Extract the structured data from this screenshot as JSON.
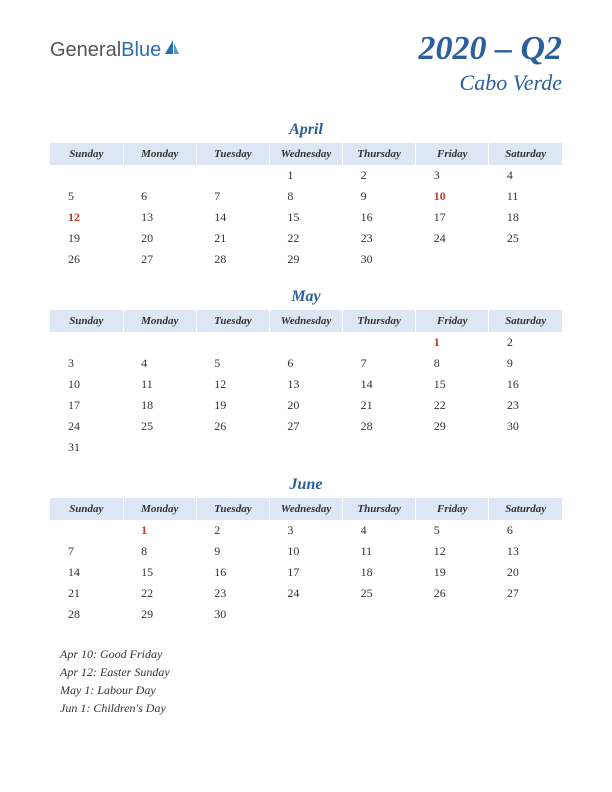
{
  "logo": {
    "part1": "General",
    "part2": "Blue"
  },
  "title": {
    "main": "2020 – Q2",
    "sub": "Cabo Verde"
  },
  "dayHeaders": [
    "Sunday",
    "Monday",
    "Tuesday",
    "Wednesday",
    "Thursday",
    "Friday",
    "Saturday"
  ],
  "colors": {
    "headerBg": "#dce6f5",
    "accent": "#2a5f9e",
    "holiday": "#c0392b",
    "text": "#333333",
    "background": "#ffffff"
  },
  "months": [
    {
      "name": "April",
      "weeks": [
        [
          null,
          null,
          null,
          1,
          2,
          3,
          4
        ],
        [
          5,
          6,
          7,
          8,
          9,
          10,
          11
        ],
        [
          12,
          13,
          14,
          15,
          16,
          17,
          18
        ],
        [
          19,
          20,
          21,
          22,
          23,
          24,
          25
        ],
        [
          26,
          27,
          28,
          29,
          30,
          null,
          null
        ]
      ],
      "holidays": [
        10,
        12
      ]
    },
    {
      "name": "May",
      "weeks": [
        [
          null,
          null,
          null,
          null,
          null,
          1,
          2
        ],
        [
          3,
          4,
          5,
          6,
          7,
          8,
          9
        ],
        [
          10,
          11,
          12,
          13,
          14,
          15,
          16
        ],
        [
          17,
          18,
          19,
          20,
          21,
          22,
          23
        ],
        [
          24,
          25,
          26,
          27,
          28,
          29,
          30
        ],
        [
          31,
          null,
          null,
          null,
          null,
          null,
          null
        ]
      ],
      "holidays": [
        1
      ]
    },
    {
      "name": "June",
      "weeks": [
        [
          null,
          1,
          2,
          3,
          4,
          5,
          6
        ],
        [
          7,
          8,
          9,
          10,
          11,
          12,
          13
        ],
        [
          14,
          15,
          16,
          17,
          18,
          19,
          20
        ],
        [
          21,
          22,
          23,
          24,
          25,
          26,
          27
        ],
        [
          28,
          29,
          30,
          null,
          null,
          null,
          null
        ]
      ],
      "holidays": [
        1
      ]
    }
  ],
  "holidayList": [
    "Apr 10: Good Friday",
    "Apr 12: Easter Sunday",
    "May 1: Labour Day",
    "Jun 1: Children's Day"
  ]
}
